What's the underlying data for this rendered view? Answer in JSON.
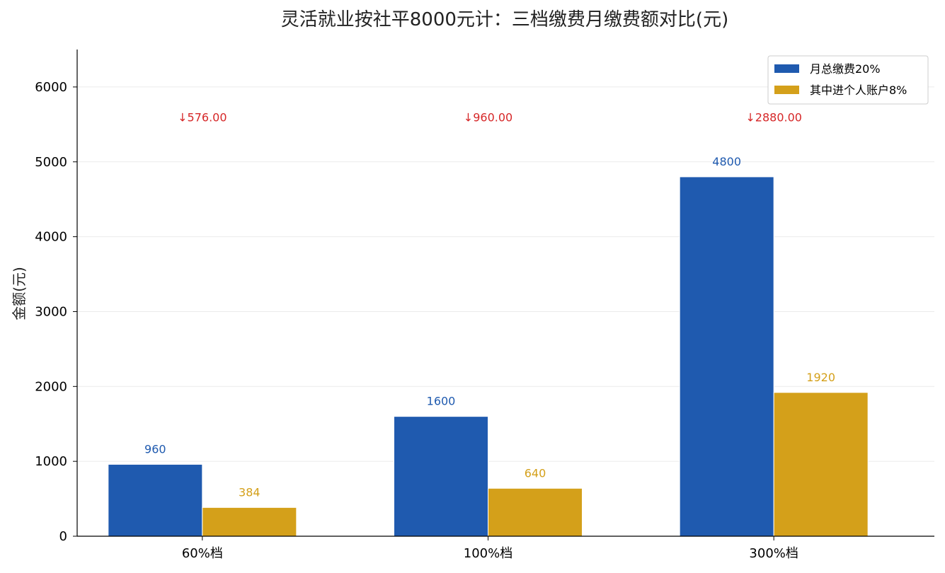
{
  "chart_data": {
    "type": "bar",
    "title": "灵活就业按社平8000元计：三档缴费月缴费额对比(元)",
    "xlabel": "",
    "ylabel": "金额(元)",
    "ylim": [
      0,
      6500
    ],
    "yticks": [
      0,
      1000,
      2000,
      3000,
      4000,
      5000,
      6000
    ],
    "grid": "horizontal",
    "legend_position": "top-right",
    "categories": [
      "60%档",
      "100%档",
      "300%档"
    ],
    "series": [
      {
        "name": "月总缴费20%",
        "values": [
          960,
          1600,
          4800
        ],
        "color": "#1f5aaf",
        "labels": [
          "960",
          "1600",
          "4800"
        ]
      },
      {
        "name": "其中进个人账户8%",
        "values": [
          384,
          640,
          1920
        ],
        "color": "#d4a01a",
        "labels": [
          "384",
          "640",
          "1920"
        ]
      }
    ],
    "annotations": [
      {
        "category": "60%档",
        "text": "↓576.00",
        "y": 5600,
        "color": "#d62728"
      },
      {
        "category": "100%档",
        "text": "↓960.00",
        "y": 5600,
        "color": "#d62728"
      },
      {
        "category": "300%档",
        "text": "↓2880.00",
        "y": 5600,
        "color": "#d62728"
      }
    ]
  }
}
